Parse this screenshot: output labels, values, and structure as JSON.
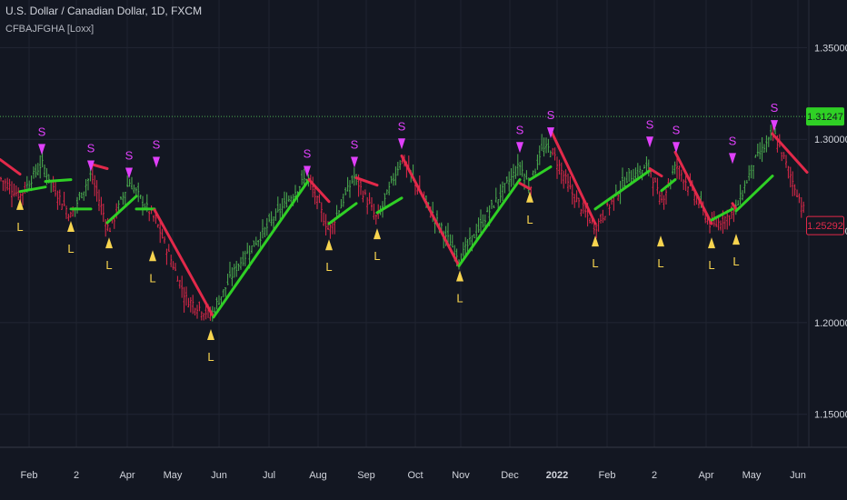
{
  "header": {
    "title": "U.S. Dollar / Canadian Dollar, 1D, FXCM",
    "indicator": "CFBAJFGHA [Loxx]"
  },
  "chart_data": {
    "type": "line",
    "y_ticks": [
      "1.35000",
      "1.30000",
      "1.25000",
      "1.20000",
      "1.15000"
    ],
    "y_tick_values": [
      1.35,
      1.3,
      1.25,
      1.2,
      1.15
    ],
    "ylim": [
      1.132,
      1.376
    ],
    "x_tick_labels": [
      "Feb",
      "2",
      "Apr",
      "May",
      "Jun",
      "Jul",
      "Aug",
      "Sep",
      "Oct",
      "Nov",
      "Dec",
      "2022",
      "Feb",
      "2",
      "Apr",
      "May",
      "Jun"
    ],
    "x_tick_bold": [
      false,
      false,
      false,
      false,
      false,
      false,
      false,
      false,
      false,
      false,
      false,
      true,
      false,
      false,
      false,
      false,
      false
    ],
    "reference_line": {
      "value": 1.31247,
      "label": "1.31247",
      "color": "#4caf50"
    },
    "last_price": {
      "value": 1.25292,
      "label": "1.25292",
      "color": "#e2294a"
    },
    "colors": {
      "up": "#2fd025",
      "down": "#e2294a",
      "long": "#f7d44f",
      "short": "#e040fb",
      "bar_up": "#4caf50",
      "bar_down": "#e2294a"
    },
    "trend_line": {
      "series": [
        {
          "x": [
            0,
            22
          ],
          "y": [
            1.289,
            1.281
          ]
        },
        {
          "x": [
            22,
            50
          ],
          "y": [
            1.2715,
            1.274
          ]
        },
        {
          "x": [
            50,
            78
          ],
          "y": [
            1.277,
            1.278
          ]
        },
        {
          "x": [
            78,
            100
          ],
          "y": [
            1.262,
            1.262
          ]
        },
        {
          "x": [
            100,
            118
          ],
          "y": [
            1.2865,
            1.284
          ]
        },
        {
          "x": [
            118,
            150
          ],
          "y": [
            1.2545,
            1.269
          ]
        },
        {
          "x": [
            150,
            170
          ],
          "y": [
            1.262,
            1.262
          ]
        },
        {
          "x": [
            170,
            235
          ],
          "y": [
            1.2615,
            1.203
          ]
        },
        {
          "x": [
            235,
            340
          ],
          "y": [
            1.203,
            1.278
          ]
        },
        {
          "x": [
            340,
            362
          ],
          "y": [
            1.278,
            1.266
          ]
        },
        {
          "x": [
            362,
            392
          ],
          "y": [
            1.254,
            1.265
          ]
        },
        {
          "x": [
            392,
            415
          ],
          "y": [
            1.279,
            1.275
          ]
        },
        {
          "x": [
            415,
            442
          ],
          "y": [
            1.26,
            1.268
          ]
        },
        {
          "x": [
            442,
            505
          ],
          "y": [
            1.291,
            1.231
          ]
        },
        {
          "x": [
            505,
            572
          ],
          "y": [
            1.231,
            1.278
          ]
        },
        {
          "x": [
            572,
            583
          ],
          "y": [
            1.276,
            1.273
          ]
        },
        {
          "x": [
            583,
            606
          ],
          "y": [
            1.278,
            1.285
          ]
        },
        {
          "x": [
            606,
            655
          ],
          "y": [
            1.305,
            1.254
          ]
        },
        {
          "x": [
            655,
            715
          ],
          "y": [
            1.262,
            1.283
          ]
        },
        {
          "x": [
            715,
            728
          ],
          "y": [
            1.284,
            1.28
          ]
        },
        {
          "x": [
            728,
            743
          ],
          "y": [
            1.272,
            1.278
          ]
        },
        {
          "x": [
            743,
            783
          ],
          "y": [
            1.293,
            1.254
          ]
        },
        {
          "x": [
            783,
            806
          ],
          "y": [
            1.256,
            1.262
          ]
        },
        {
          "x": [
            806,
            810
          ],
          "y": [
            1.265,
            1.262
          ]
        },
        {
          "x": [
            810,
            850
          ],
          "y": [
            1.261,
            1.28
          ]
        },
        {
          "x": [
            850,
            888
          ],
          "y": [
            1.303,
            1.282
          ]
        }
      ]
    },
    "signals": [
      {
        "type": "long",
        "x": 22,
        "price": 1.264,
        "label": "L"
      },
      {
        "type": "short",
        "x": 46,
        "price": 1.295,
        "label": "S"
      },
      {
        "type": "long",
        "x": 78,
        "price": 1.252,
        "label": "L"
      },
      {
        "type": "short",
        "x": 100,
        "price": 1.286,
        "label": "S"
      },
      {
        "type": "long",
        "x": 120,
        "price": 1.243,
        "label": "L"
      },
      {
        "type": "short",
        "x": 142,
        "price": 1.282,
        "label": "S"
      },
      {
        "type": "long",
        "x": 168,
        "price": 1.236,
        "label": "L"
      },
      {
        "type": "short",
        "x": 172,
        "price": 1.288,
        "label": "S"
      },
      {
        "type": "long",
        "x": 232,
        "price": 1.193,
        "label": "L"
      },
      {
        "type": "short",
        "x": 338,
        "price": 1.283,
        "label": "S"
      },
      {
        "type": "long",
        "x": 362,
        "price": 1.242,
        "label": "L"
      },
      {
        "type": "short",
        "x": 390,
        "price": 1.288,
        "label": "S"
      },
      {
        "type": "long",
        "x": 415,
        "price": 1.248,
        "label": "L"
      },
      {
        "type": "short",
        "x": 442,
        "price": 1.298,
        "label": "S"
      },
      {
        "type": "long",
        "x": 506,
        "price": 1.225,
        "label": "L"
      },
      {
        "type": "short",
        "x": 572,
        "price": 1.296,
        "label": "S"
      },
      {
        "type": "long",
        "x": 583,
        "price": 1.268,
        "label": "L"
      },
      {
        "type": "short",
        "x": 606,
        "price": 1.304,
        "label": "S"
      },
      {
        "type": "long",
        "x": 655,
        "price": 1.244,
        "label": "L"
      },
      {
        "type": "short",
        "x": 715,
        "price": 1.299,
        "label": "S"
      },
      {
        "type": "long",
        "x": 727,
        "price": 1.244,
        "label": "L"
      },
      {
        "type": "short",
        "x": 744,
        "price": 1.296,
        "label": "S"
      },
      {
        "type": "long",
        "x": 783,
        "price": 1.243,
        "label": "L"
      },
      {
        "type": "short",
        "x": 806,
        "price": 1.29,
        "label": "S"
      },
      {
        "type": "long",
        "x": 810,
        "price": 1.245,
        "label": "L"
      },
      {
        "type": "short",
        "x": 852,
        "price": 1.308,
        "label": "S"
      }
    ],
    "price_path": {
      "x": [
        0,
        22,
        46,
        60,
        78,
        100,
        120,
        142,
        172,
        205,
        232,
        260,
        300,
        338,
        362,
        390,
        415,
        442,
        475,
        506,
        540,
        572,
        583,
        595,
        606,
        630,
        655,
        690,
        715,
        727,
        744,
        770,
        783,
        806,
        810,
        830,
        852,
        870,
        888
      ],
      "y": [
        1.279,
        1.269,
        1.287,
        1.273,
        1.258,
        1.281,
        1.25,
        1.277,
        1.255,
        1.213,
        1.204,
        1.23,
        1.256,
        1.28,
        1.25,
        1.28,
        1.256,
        1.29,
        1.26,
        1.235,
        1.262,
        1.286,
        1.274,
        1.294,
        1.295,
        1.27,
        1.252,
        1.279,
        1.285,
        1.265,
        1.286,
        1.265,
        1.252,
        1.26,
        1.262,
        1.288,
        1.303,
        1.28,
        1.257
      ]
    }
  }
}
